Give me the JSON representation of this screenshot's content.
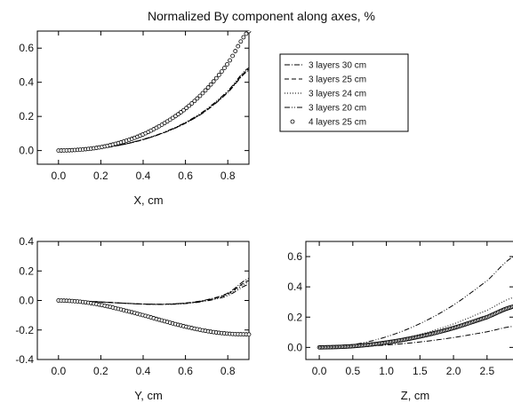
{
  "figure": {
    "title": "Normalized By component along axes, %"
  },
  "chart_data": [
    {
      "type": "line",
      "panel": "X",
      "xlabel": "X, cm",
      "ylabel": "",
      "xlim": [
        -0.1,
        0.9
      ],
      "ylim": [
        -0.08,
        0.7
      ],
      "xticks": [
        "0.0",
        "0.2",
        "0.4",
        "0.6",
        "0.8"
      ],
      "yticks": [
        "0.0",
        "0.2",
        "0.4",
        "0.6"
      ],
      "series": [
        {
          "name": "3 layers 30 cm",
          "style": "dashdot",
          "x": [
            0,
            0.1,
            0.2,
            0.3,
            0.4,
            0.5,
            0.6,
            0.7,
            0.8,
            0.9
          ],
          "y": [
            0,
            0.003,
            0.014,
            0.034,
            0.064,
            0.105,
            0.16,
            0.235,
            0.34,
            0.47
          ]
        },
        {
          "name": "3 layers 25 cm",
          "style": "dash",
          "x": [
            0,
            0.1,
            0.2,
            0.3,
            0.4,
            0.5,
            0.6,
            0.7,
            0.8,
            0.9
          ],
          "y": [
            0,
            0.003,
            0.014,
            0.034,
            0.064,
            0.106,
            0.162,
            0.237,
            0.343,
            0.475
          ]
        },
        {
          "name": "3 layers 24 cm",
          "style": "dot",
          "x": [
            0,
            0.1,
            0.2,
            0.3,
            0.4,
            0.5,
            0.6,
            0.7,
            0.8,
            0.9
          ],
          "y": [
            0,
            0.003,
            0.014,
            0.035,
            0.065,
            0.107,
            0.163,
            0.24,
            0.346,
            0.48
          ]
        },
        {
          "name": "3 layers 20 cm",
          "style": "dashdotdot",
          "x": [
            0,
            0.1,
            0.2,
            0.3,
            0.4,
            0.5,
            0.6,
            0.7,
            0.8,
            0.9
          ],
          "y": [
            0,
            0.003,
            0.015,
            0.035,
            0.066,
            0.108,
            0.165,
            0.243,
            0.35,
            0.485
          ]
        },
        {
          "name": "4 layers 25 cm",
          "style": "circles",
          "x": [
            0,
            0.1,
            0.2,
            0.3,
            0.4,
            0.5,
            0.6,
            0.7,
            0.8,
            0.9
          ],
          "y": [
            0,
            0.005,
            0.02,
            0.05,
            0.095,
            0.16,
            0.245,
            0.36,
            0.51,
            0.7
          ]
        }
      ]
    },
    {
      "type": "line",
      "panel": "Y",
      "xlabel": "Y, cm",
      "ylabel": "",
      "xlim": [
        -0.1,
        0.9
      ],
      "ylim": [
        -0.4,
        0.4
      ],
      "xticks": [
        "0.0",
        "0.2",
        "0.4",
        "0.6",
        "0.8"
      ],
      "yticks": [
        "-0.4",
        "-0.2",
        "0.0",
        "0.2",
        "0.4"
      ],
      "series": [
        {
          "name": "3 layers 30 cm",
          "style": "dashdot",
          "x": [
            0,
            0.1,
            0.2,
            0.3,
            0.4,
            0.5,
            0.6,
            0.7,
            0.8,
            0.9
          ],
          "y": [
            0,
            -0.003,
            -0.01,
            -0.018,
            -0.024,
            -0.025,
            -0.017,
            0.005,
            0.05,
            0.15
          ]
        },
        {
          "name": "3 layers 25 cm",
          "style": "dash",
          "x": [
            0,
            0.1,
            0.2,
            0.3,
            0.4,
            0.5,
            0.6,
            0.7,
            0.8,
            0.9
          ],
          "y": [
            0,
            -0.003,
            -0.01,
            -0.018,
            -0.024,
            -0.025,
            -0.018,
            0.002,
            0.045,
            0.135
          ]
        },
        {
          "name": "3 layers 24 cm",
          "style": "dot",
          "x": [
            0,
            0.1,
            0.2,
            0.3,
            0.4,
            0.5,
            0.6,
            0.7,
            0.8,
            0.9
          ],
          "y": [
            0,
            -0.003,
            -0.01,
            -0.018,
            -0.024,
            -0.026,
            -0.019,
            0.0,
            0.04,
            0.125
          ]
        },
        {
          "name": "3 layers 20 cm",
          "style": "dashdotdot",
          "x": [
            0,
            0.1,
            0.2,
            0.3,
            0.4,
            0.5,
            0.6,
            0.7,
            0.8,
            0.9
          ],
          "y": [
            0,
            -0.003,
            -0.01,
            -0.018,
            -0.025,
            -0.027,
            -0.021,
            -0.003,
            0.033,
            0.11
          ]
        },
        {
          "name": "4 layers 25 cm",
          "style": "circles",
          "x": [
            0,
            0.1,
            0.2,
            0.3,
            0.4,
            0.5,
            0.6,
            0.7,
            0.8,
            0.9
          ],
          "y": [
            0,
            -0.008,
            -0.03,
            -0.063,
            -0.1,
            -0.14,
            -0.177,
            -0.207,
            -0.225,
            -0.23
          ]
        }
      ]
    },
    {
      "type": "line",
      "panel": "Z",
      "xlabel": "Z, cm",
      "ylabel": "",
      "xlim": [
        -0.2,
        2.9
      ],
      "ylim": [
        -0.08,
        0.7
      ],
      "xticks": [
        "0.0",
        "0.5",
        "1.0",
        "1.5",
        "2.0",
        "2.5"
      ],
      "yticks": [
        "0.0",
        "0.2",
        "0.4",
        "0.6"
      ],
      "series": [
        {
          "name": "3 layers 30 cm",
          "style": "dashdot",
          "x": [
            0,
            0.5,
            1.0,
            1.5,
            2.0,
            2.5,
            2.9
          ],
          "y": [
            0,
            0.004,
            0.016,
            0.036,
            0.065,
            0.103,
            0.14
          ]
        },
        {
          "name": "3 layers 25 cm",
          "style": "dash",
          "x": [
            0,
            0.5,
            1.0,
            1.5,
            2.0,
            2.5,
            2.9
          ],
          "y": [
            0,
            0.008,
            0.03,
            0.068,
            0.12,
            0.19,
            0.26
          ]
        },
        {
          "name": "3 layers 24 cm",
          "style": "dot",
          "x": [
            0,
            0.5,
            1.0,
            1.5,
            2.0,
            2.5,
            2.9
          ],
          "y": [
            0,
            0.01,
            0.038,
            0.086,
            0.155,
            0.245,
            0.33
          ]
        },
        {
          "name": "3 layers 20 cm",
          "style": "dashdotdot",
          "x": [
            0,
            0.5,
            1.0,
            1.5,
            2.0,
            2.5,
            2.9
          ],
          "y": [
            0,
            0.018,
            0.07,
            0.157,
            0.28,
            0.44,
            0.6
          ]
        },
        {
          "name": "4 layers 25 cm",
          "style": "circles",
          "x": [
            0,
            0.5,
            1.0,
            1.5,
            2.0,
            2.5,
            2.9
          ],
          "y": [
            0,
            0.008,
            0.032,
            0.072,
            0.128,
            0.2,
            0.27
          ]
        }
      ]
    }
  ],
  "legend": {
    "placement": "top-right, beside X panel",
    "entries": [
      "3 layers 30 cm",
      "3 layers 25 cm",
      "3 layers 24 cm",
      "3 layers 20 cm",
      "4 layers 25 cm"
    ]
  }
}
